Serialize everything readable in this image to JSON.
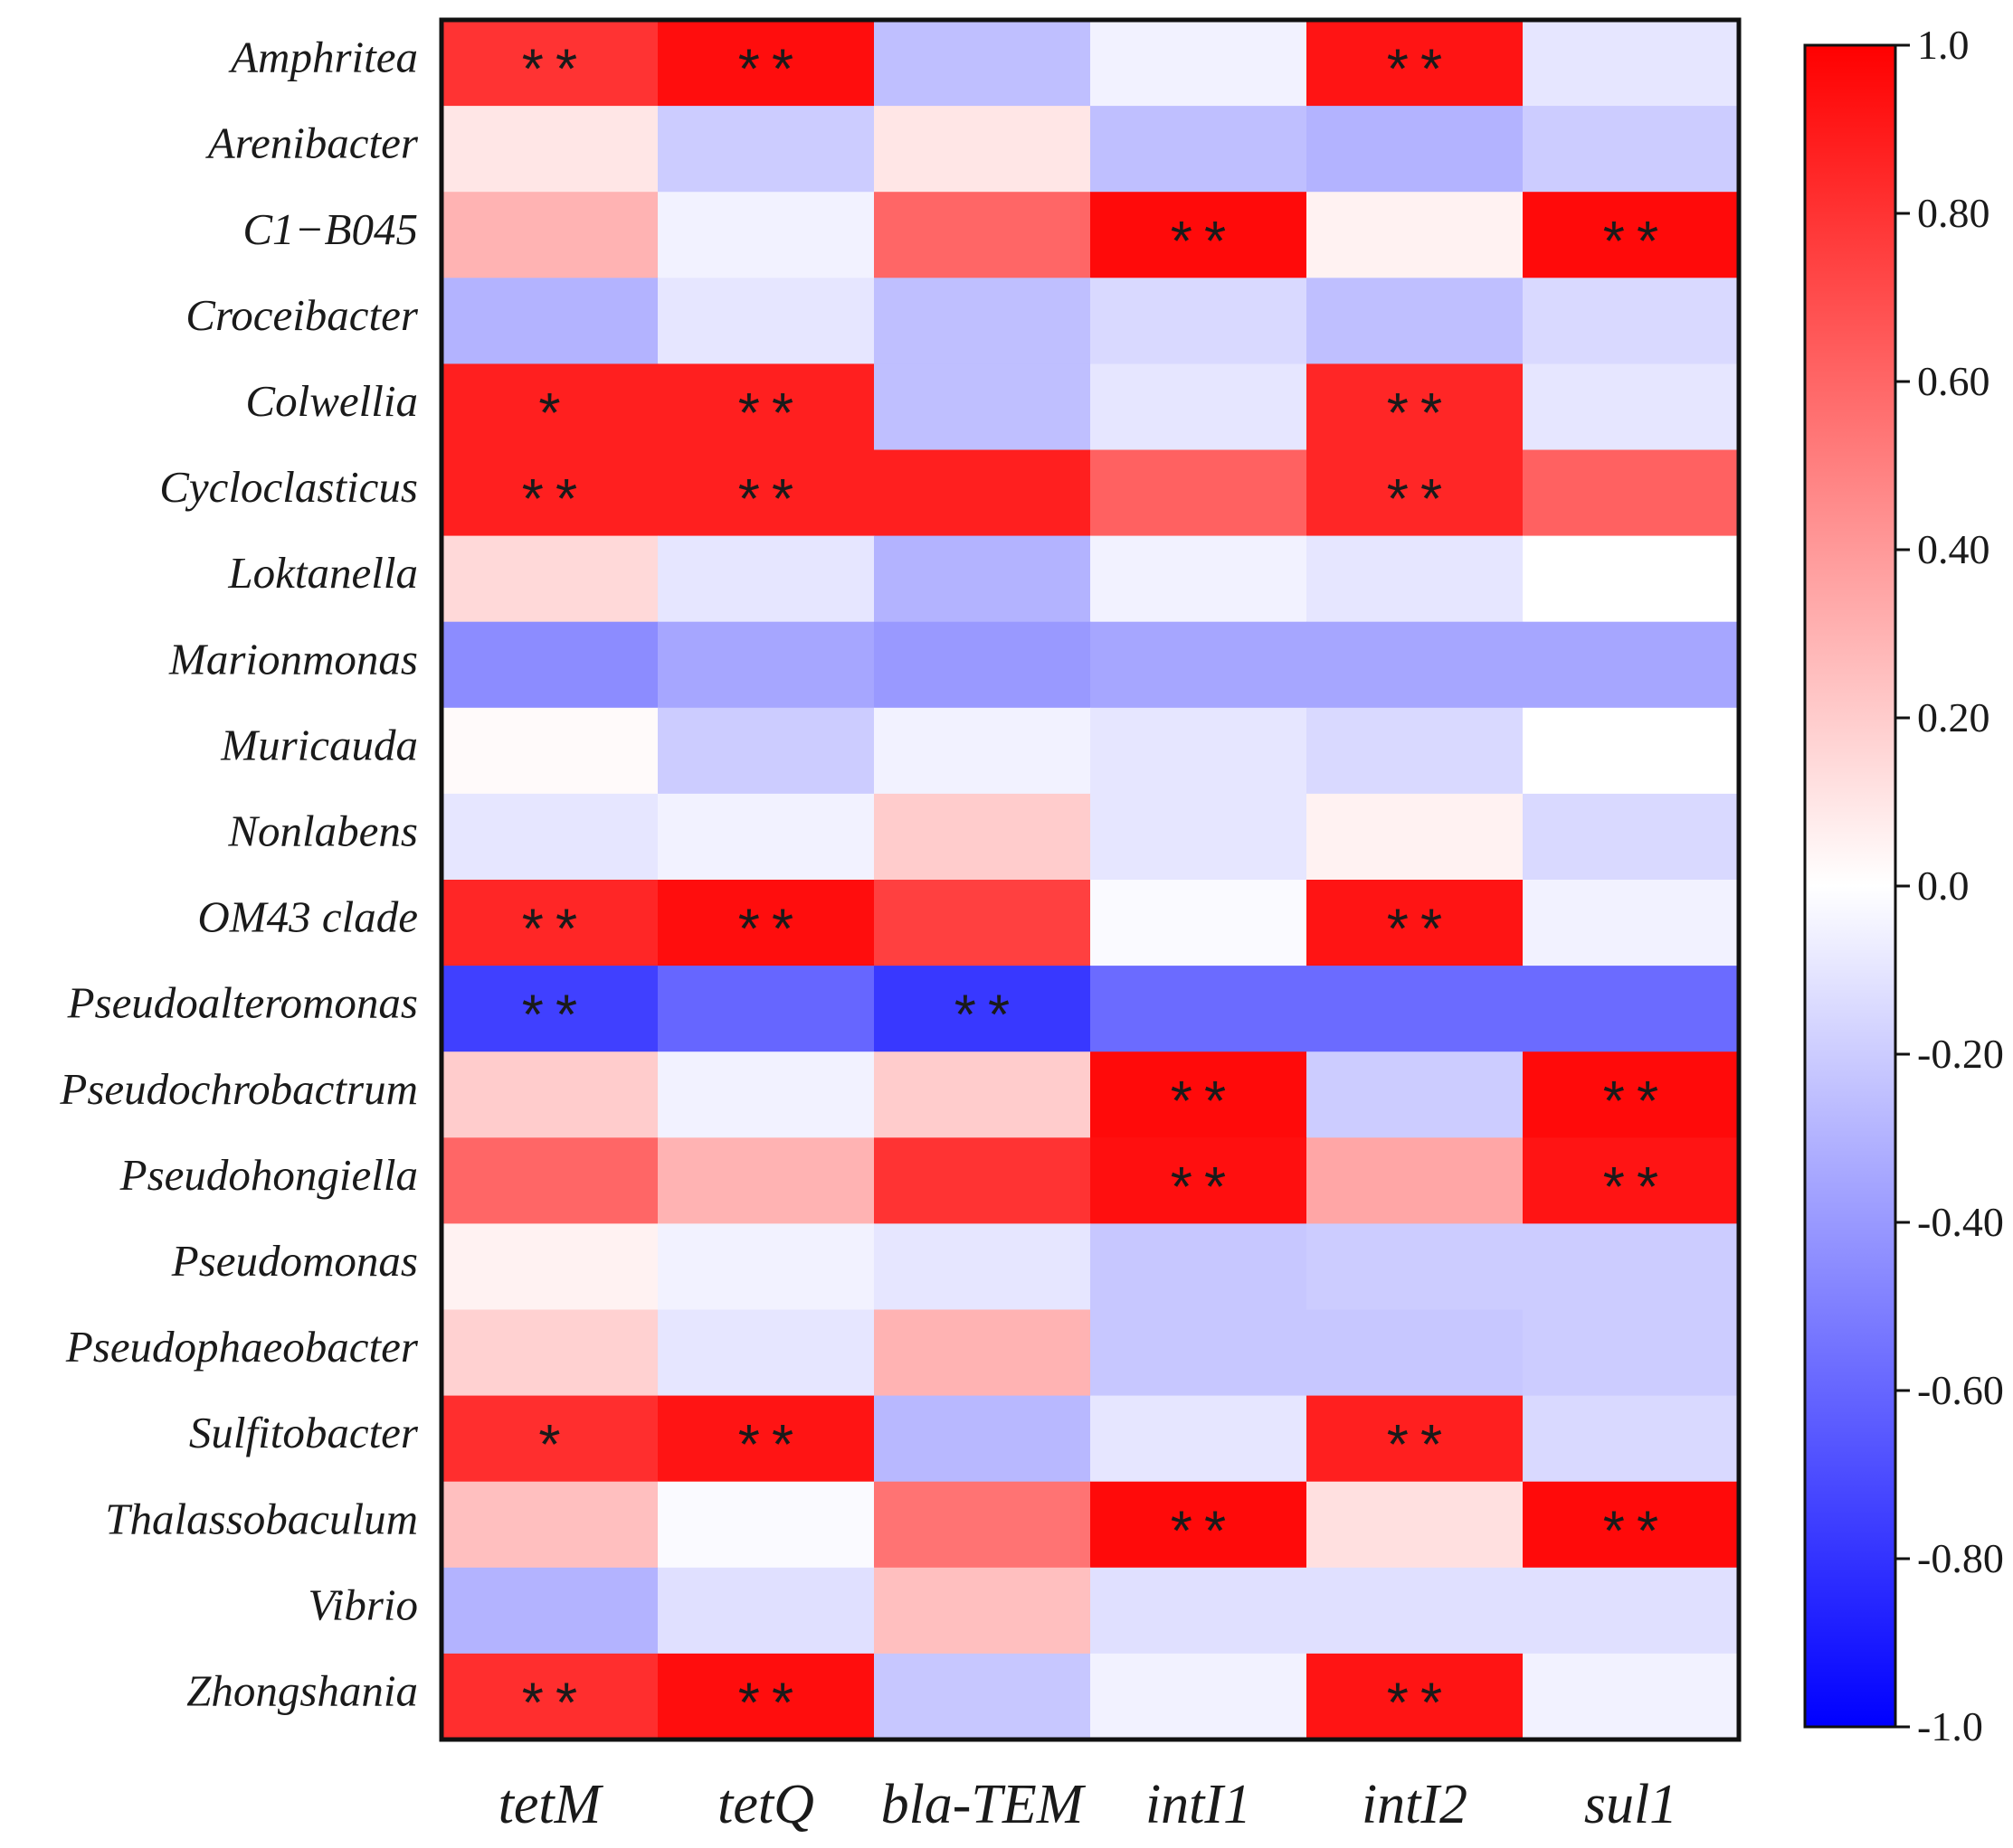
{
  "chart_data": {
    "type": "heatmap",
    "title": "",
    "xlabel": "",
    "ylabel": "",
    "columns": [
      "tetM",
      "tetQ",
      "bla-TEM",
      "intI1",
      "intI2",
      "sul1"
    ],
    "rows": [
      "Amphritea",
      "Arenibacter",
      "C1−B045",
      "Croceibacter",
      "Colwellia",
      "Cycloclasticus",
      "Loktanella",
      "Marionmonas",
      "Muricauda",
      "Nonlabens",
      "OM43 clade",
      "Pseudoalteromonas",
      "Pseudochrobactrum",
      "Pseudohongiella",
      "Pseudomonas",
      "Pseudophaeobacter",
      "Sulfitobacter",
      "Thalassobaculum",
      "Vibrio",
      "Zhongshania"
    ],
    "values": [
      [
        0.8,
        0.95,
        -0.25,
        -0.05,
        0.92,
        -0.1
      ],
      [
        0.1,
        -0.2,
        0.1,
        -0.25,
        -0.3,
        -0.2
      ],
      [
        0.3,
        -0.05,
        0.6,
        0.96,
        0.05,
        0.96
      ],
      [
        -0.3,
        -0.1,
        -0.25,
        -0.15,
        -0.25,
        -0.15
      ],
      [
        0.88,
        0.88,
        -0.25,
        -0.1,
        0.85,
        -0.1
      ],
      [
        0.88,
        0.88,
        0.88,
        0.62,
        0.85,
        0.62
      ],
      [
        0.15,
        -0.1,
        -0.3,
        -0.05,
        -0.1,
        0.0
      ],
      [
        -0.45,
        -0.35,
        -0.4,
        -0.35,
        -0.35,
        -0.35
      ],
      [
        0.02,
        -0.2,
        -0.05,
        -0.1,
        -0.15,
        0.0
      ],
      [
        -0.1,
        -0.05,
        0.2,
        -0.1,
        0.05,
        -0.15
      ],
      [
        0.85,
        0.95,
        0.75,
        -0.02,
        0.92,
        -0.05
      ],
      [
        -0.75,
        -0.6,
        -0.78,
        -0.58,
        -0.58,
        -0.58
      ],
      [
        0.2,
        -0.05,
        0.2,
        0.96,
        -0.2,
        0.96
      ],
      [
        0.6,
        0.3,
        0.8,
        0.94,
        0.35,
        0.92
      ],
      [
        0.05,
        -0.05,
        -0.1,
        -0.22,
        -0.2,
        -0.2
      ],
      [
        0.18,
        -0.1,
        0.3,
        -0.22,
        -0.22,
        -0.2
      ],
      [
        0.82,
        0.92,
        -0.28,
        -0.1,
        0.88,
        -0.15
      ],
      [
        0.25,
        -0.02,
        0.55,
        0.96,
        0.12,
        0.96
      ],
      [
        -0.3,
        -0.12,
        0.25,
        -0.12,
        -0.12,
        -0.12
      ],
      [
        0.82,
        0.95,
        -0.22,
        -0.05,
        0.92,
        -0.05
      ]
    ],
    "significance": [
      [
        "**",
        "**",
        "",
        "",
        "**",
        ""
      ],
      [
        "",
        "",
        "",
        "",
        "",
        ""
      ],
      [
        "",
        "",
        "",
        "**",
        "",
        "**"
      ],
      [
        "",
        "",
        "",
        "",
        "",
        ""
      ],
      [
        "*",
        "**",
        "",
        "",
        "**",
        ""
      ],
      [
        "**",
        "**",
        "",
        "",
        "**",
        ""
      ],
      [
        "",
        "",
        "",
        "",
        "",
        ""
      ],
      [
        "",
        "",
        "",
        "",
        "",
        ""
      ],
      [
        "",
        "",
        "",
        "",
        "",
        ""
      ],
      [
        "",
        "",
        "",
        "",
        "",
        ""
      ],
      [
        "**",
        "**",
        "",
        "",
        "**",
        ""
      ],
      [
        "**",
        "",
        "**",
        "",
        "",
        ""
      ],
      [
        "",
        "",
        "",
        "**",
        "",
        "**"
      ],
      [
        "",
        "",
        "",
        "**",
        "",
        "**"
      ],
      [
        "",
        "",
        "",
        "",
        "",
        ""
      ],
      [
        "",
        "",
        "",
        "",
        "",
        ""
      ],
      [
        "*",
        "**",
        "",
        "",
        "**",
        ""
      ],
      [
        "",
        "",
        "",
        "**",
        "",
        "**"
      ],
      [
        "",
        "",
        "",
        "",
        "",
        ""
      ],
      [
        "**",
        "**",
        "",
        "",
        "**",
        ""
      ]
    ],
    "colorscale": {
      "min": -1.0,
      "max": 1.0,
      "low_color": "#0000ff",
      "mid_color": "#ffffff",
      "high_color": "#ff0000",
      "ticks": [
        "1.0",
        "0.80",
        "0.60",
        "0.40",
        "0.20",
        "0.0",
        "-0.20",
        "-0.40",
        "-0.60",
        "-0.80",
        "-1.0"
      ],
      "tick_values": [
        1.0,
        0.8,
        0.6,
        0.4,
        0.2,
        0.0,
        -0.2,
        -0.4,
        -0.6,
        -0.8,
        -1.0
      ]
    },
    "legend_position": "right"
  }
}
